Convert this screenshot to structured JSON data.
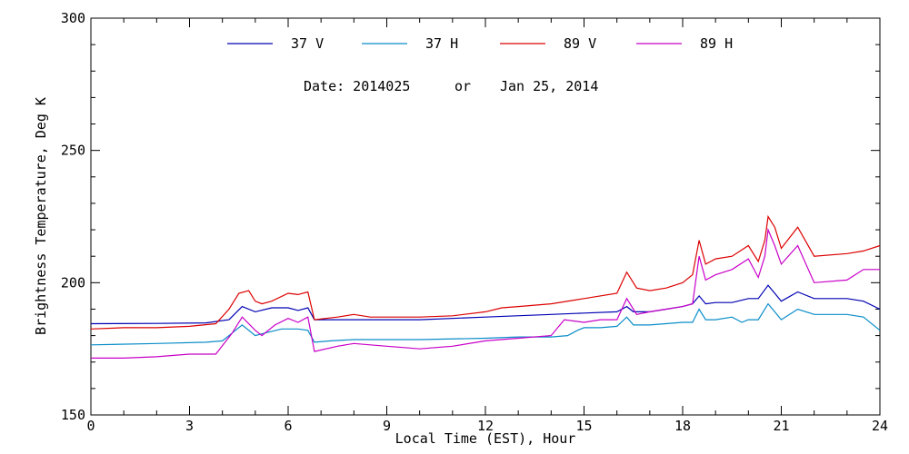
{
  "chart_data": {
    "type": "line",
    "xlabel": "Local Time (EST), Hour",
    "ylabel": "Brightness Temperature, Deg K",
    "xlim": [
      0,
      24
    ],
    "ylim": [
      150,
      300
    ],
    "xticks": [
      0,
      3,
      6,
      9,
      12,
      15,
      18,
      21,
      24
    ],
    "yticks": [
      150,
      200,
      250,
      300
    ],
    "grid": false,
    "legend_position": "top",
    "annotation": {
      "date_label": "Date: 2014025",
      "or_label": "or",
      "date_text": "Jan 25, 2014"
    },
    "series": [
      {
        "name": "37 V",
        "color": "#0000b4",
        "points": [
          [
            0,
            184.5
          ],
          [
            2,
            184.6
          ],
          [
            3.5,
            184.8
          ],
          [
            4.2,
            186
          ],
          [
            4.6,
            191
          ],
          [
            5.0,
            189
          ],
          [
            5.5,
            190.5
          ],
          [
            6.0,
            190.5
          ],
          [
            6.3,
            189.5
          ],
          [
            6.6,
            190.5
          ],
          [
            6.8,
            186
          ],
          [
            8,
            186
          ],
          [
            10,
            186
          ],
          [
            12,
            187
          ],
          [
            14,
            188
          ],
          [
            15,
            188.5
          ],
          [
            16,
            189
          ],
          [
            16.3,
            191
          ],
          [
            16.5,
            189
          ],
          [
            17,
            189
          ],
          [
            17.5,
            190
          ],
          [
            18,
            191
          ],
          [
            18.3,
            192
          ],
          [
            18.5,
            195
          ],
          [
            18.7,
            192
          ],
          [
            19,
            192.5
          ],
          [
            19.5,
            192.5
          ],
          [
            20,
            194
          ],
          [
            20.3,
            194
          ],
          [
            20.6,
            199
          ],
          [
            20.8,
            196
          ],
          [
            21,
            193
          ],
          [
            21.5,
            196.5
          ],
          [
            22,
            194
          ],
          [
            23,
            194
          ],
          [
            23.5,
            193
          ],
          [
            24,
            190
          ]
        ]
      },
      {
        "name": "37 H",
        "color": "#0a8cc8",
        "points": [
          [
            0,
            176.5
          ],
          [
            2,
            177
          ],
          [
            3.5,
            177.5
          ],
          [
            4.0,
            178
          ],
          [
            4.3,
            181
          ],
          [
            4.6,
            184
          ],
          [
            5.0,
            180
          ],
          [
            5.3,
            181
          ],
          [
            5.8,
            182.5
          ],
          [
            6.3,
            182.5
          ],
          [
            6.6,
            182
          ],
          [
            6.8,
            177.5
          ],
          [
            7.3,
            178
          ],
          [
            8,
            178.5
          ],
          [
            10,
            178.5
          ],
          [
            12,
            179
          ],
          [
            13,
            179.5
          ],
          [
            14,
            179.5
          ],
          [
            14.5,
            180
          ],
          [
            14.8,
            182
          ],
          [
            15,
            183
          ],
          [
            15.5,
            183
          ],
          [
            16,
            183.5
          ],
          [
            16.3,
            187
          ],
          [
            16.5,
            184
          ],
          [
            17,
            184
          ],
          [
            18,
            185
          ],
          [
            18.3,
            185
          ],
          [
            18.5,
            190
          ],
          [
            18.7,
            186
          ],
          [
            19,
            186
          ],
          [
            19.5,
            187
          ],
          [
            19.8,
            185
          ],
          [
            20,
            186
          ],
          [
            20.3,
            186
          ],
          [
            20.6,
            192
          ],
          [
            20.8,
            189
          ],
          [
            21,
            186
          ],
          [
            21.5,
            190
          ],
          [
            22,
            188
          ],
          [
            23,
            188
          ],
          [
            23.5,
            187
          ],
          [
            24,
            182
          ]
        ]
      },
      {
        "name": "89 V",
        "color": "#dc0000",
        "points": [
          [
            0,
            182.5
          ],
          [
            1,
            183
          ],
          [
            2,
            183
          ],
          [
            3,
            183.5
          ],
          [
            3.8,
            184.5
          ],
          [
            4.2,
            190
          ],
          [
            4.5,
            196
          ],
          [
            4.8,
            197
          ],
          [
            5.0,
            193
          ],
          [
            5.2,
            192
          ],
          [
            5.5,
            193
          ],
          [
            6.0,
            196
          ],
          [
            6.3,
            195.5
          ],
          [
            6.6,
            196.5
          ],
          [
            6.8,
            186
          ],
          [
            7.5,
            187
          ],
          [
            8,
            188
          ],
          [
            8.5,
            187
          ],
          [
            10,
            187
          ],
          [
            11,
            187.5
          ],
          [
            12,
            189
          ],
          [
            12.5,
            190.5
          ],
          [
            13,
            191
          ],
          [
            14,
            192
          ],
          [
            15,
            194
          ],
          [
            16,
            196
          ],
          [
            16.3,
            204
          ],
          [
            16.6,
            198
          ],
          [
            17,
            197
          ],
          [
            17.5,
            198
          ],
          [
            18,
            200
          ],
          [
            18.3,
            203
          ],
          [
            18.5,
            216
          ],
          [
            18.7,
            207
          ],
          [
            19,
            209
          ],
          [
            19.5,
            210
          ],
          [
            20,
            214
          ],
          [
            20.3,
            208
          ],
          [
            20.5,
            216
          ],
          [
            20.6,
            225
          ],
          [
            20.8,
            221
          ],
          [
            21.0,
            213
          ],
          [
            21.5,
            221
          ],
          [
            22,
            210
          ],
          [
            23,
            211
          ],
          [
            23.5,
            212
          ],
          [
            24,
            214
          ]
        ]
      },
      {
        "name": "89 H",
        "color": "#c800c8",
        "points": [
          [
            0,
            171.5
          ],
          [
            1,
            171.5
          ],
          [
            2,
            172
          ],
          [
            3,
            173
          ],
          [
            3.8,
            173
          ],
          [
            4.3,
            181
          ],
          [
            4.6,
            187
          ],
          [
            5.0,
            182
          ],
          [
            5.2,
            180
          ],
          [
            5.6,
            184
          ],
          [
            6.0,
            186.5
          ],
          [
            6.3,
            185
          ],
          [
            6.6,
            187
          ],
          [
            6.8,
            174
          ],
          [
            7.5,
            176
          ],
          [
            8,
            177
          ],
          [
            9,
            176
          ],
          [
            10,
            175
          ],
          [
            11,
            176
          ],
          [
            12,
            178
          ],
          [
            13,
            179
          ],
          [
            14,
            180
          ],
          [
            14.4,
            186
          ],
          [
            15,
            185
          ],
          [
            15.5,
            186
          ],
          [
            16,
            186
          ],
          [
            16.3,
            194
          ],
          [
            16.6,
            188
          ],
          [
            17,
            189
          ],
          [
            17.5,
            190
          ],
          [
            18,
            191
          ],
          [
            18.3,
            192
          ],
          [
            18.5,
            210
          ],
          [
            18.7,
            201
          ],
          [
            19,
            203
          ],
          [
            19.5,
            205
          ],
          [
            20,
            209
          ],
          [
            20.3,
            202
          ],
          [
            20.5,
            210
          ],
          [
            20.6,
            220
          ],
          [
            20.8,
            214
          ],
          [
            21.0,
            207
          ],
          [
            21.5,
            214
          ],
          [
            22,
            200
          ],
          [
            23,
            201
          ],
          [
            23.5,
            205
          ],
          [
            24,
            205
          ]
        ]
      }
    ]
  }
}
